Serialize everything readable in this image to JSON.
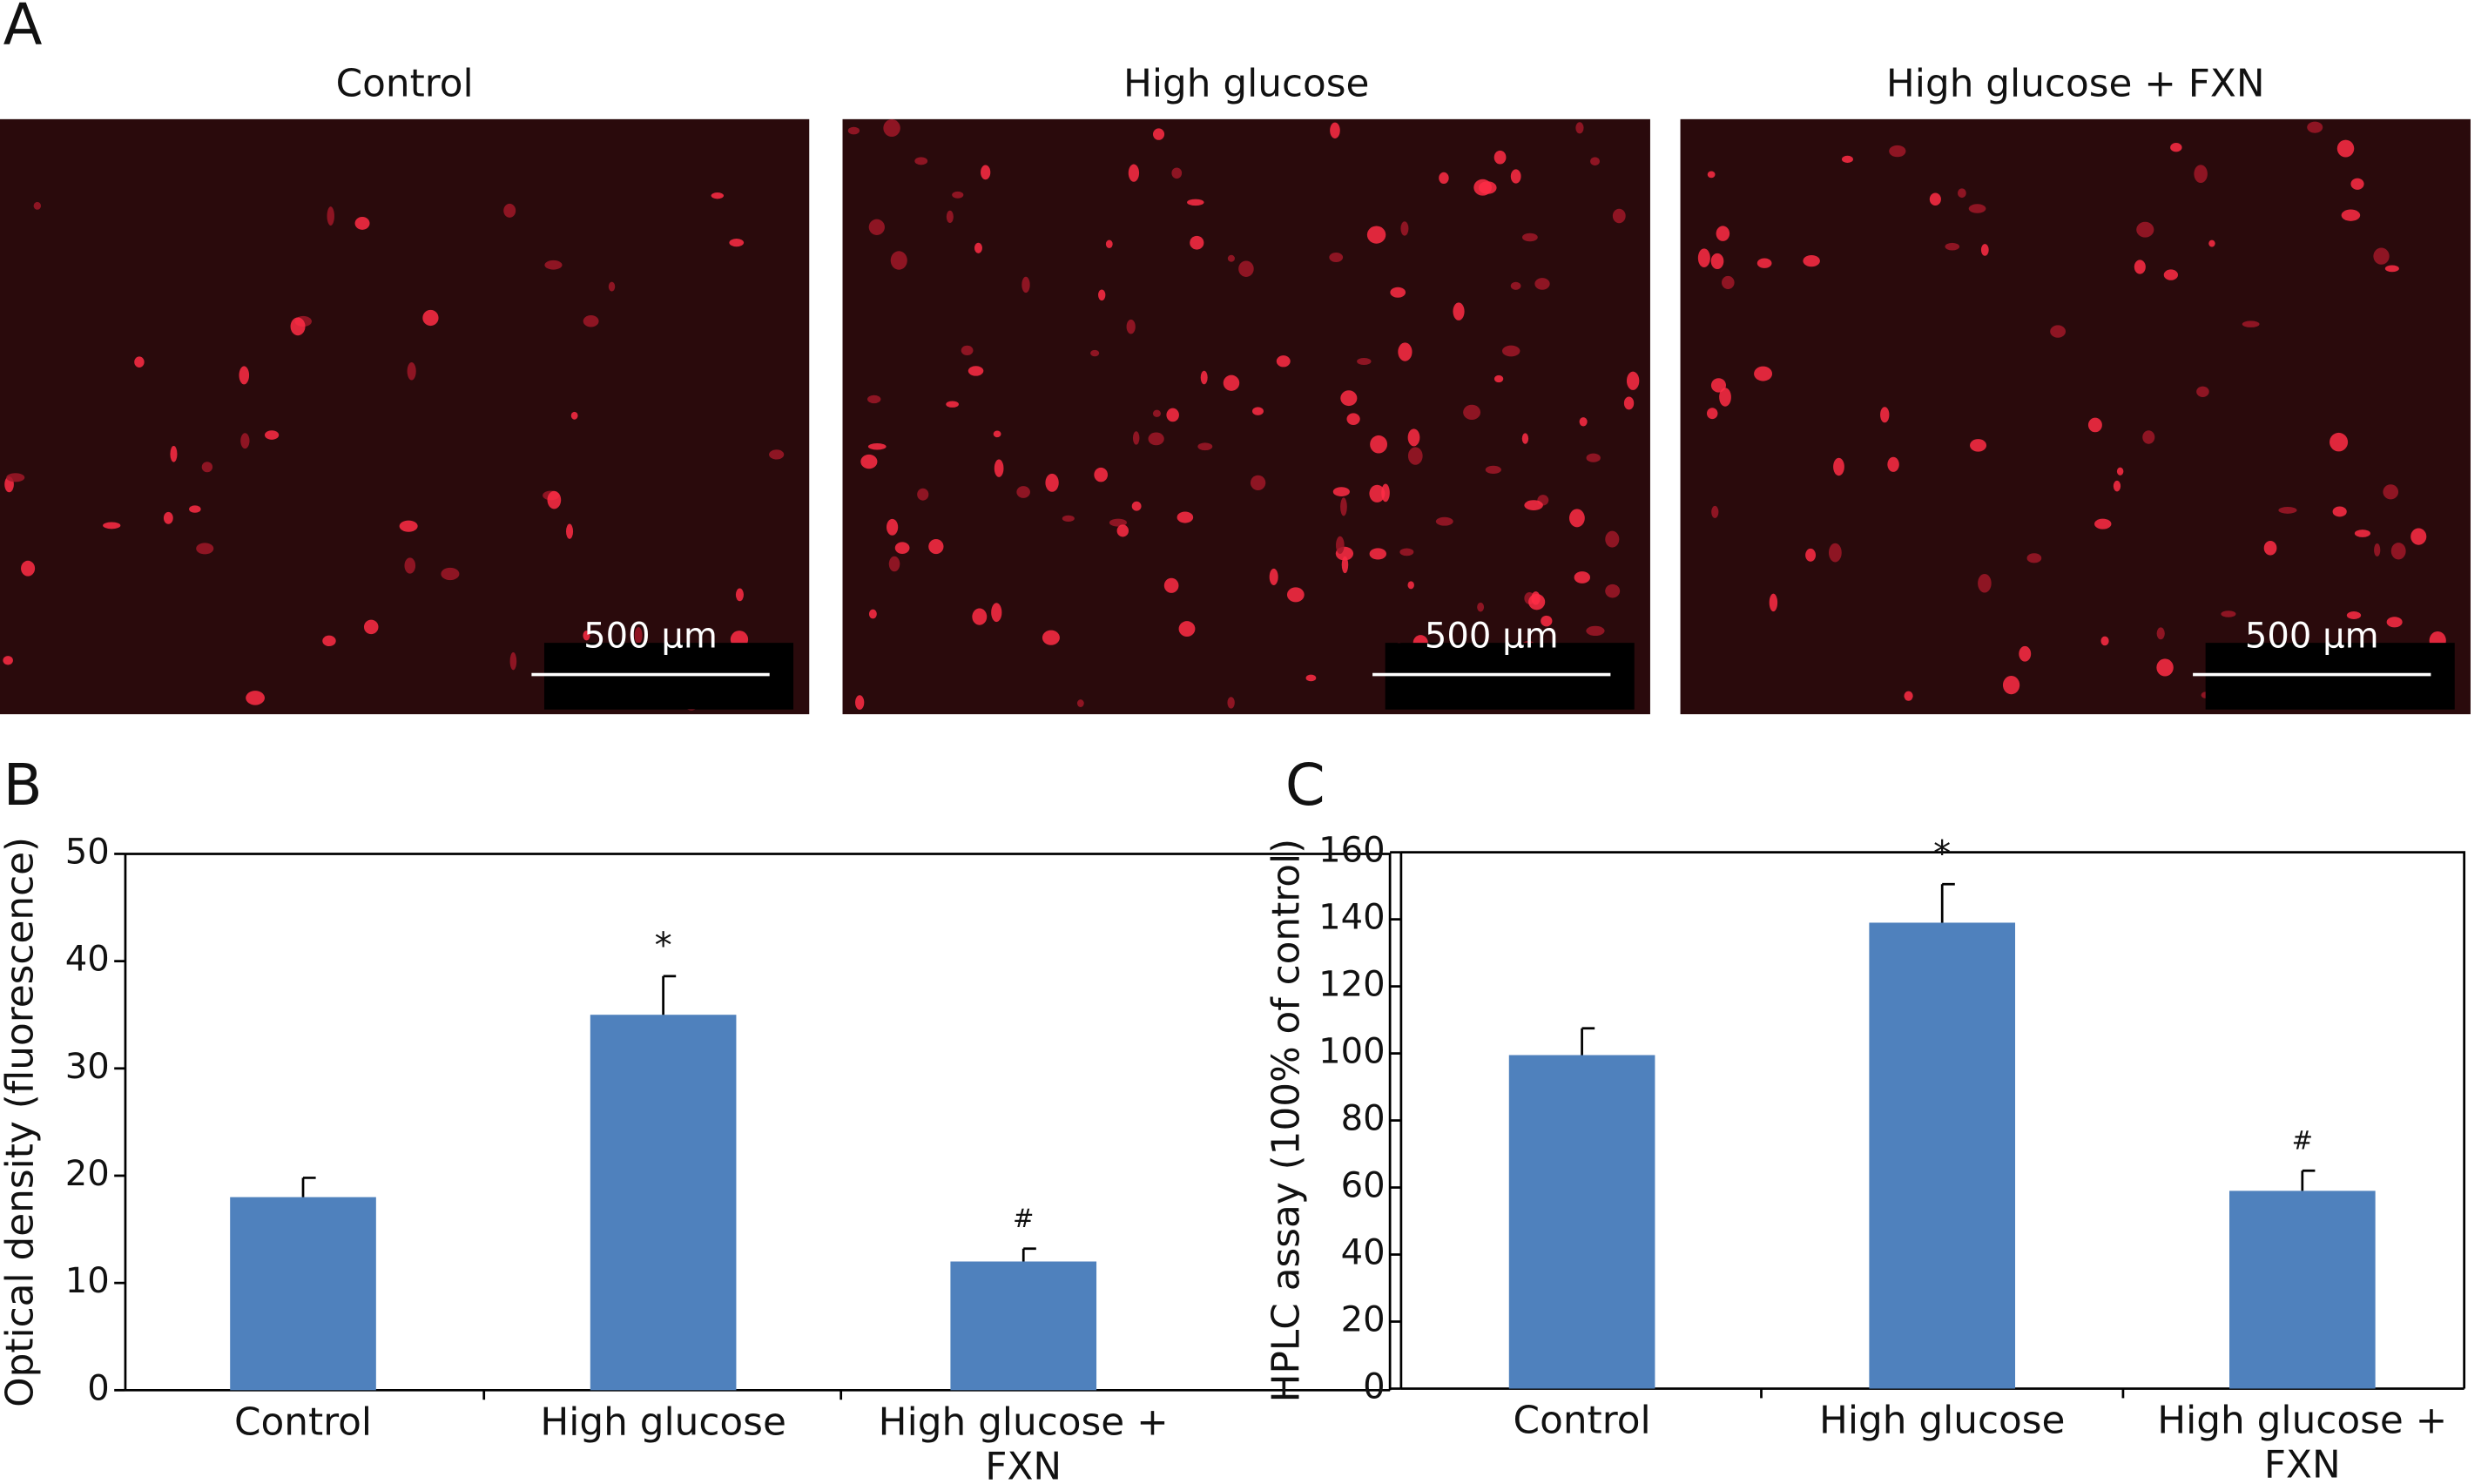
{
  "panel_a": {
    "label": "A",
    "images": [
      {
        "title": "Control",
        "scale_bar": "500 µm"
      },
      {
        "title": "High glucose",
        "scale_bar": "500 µm"
      },
      {
        "title": "High glucose + FXN",
        "scale_bar": "500 µm"
      }
    ]
  },
  "chart_data": [
    {
      "type": "bar",
      "panel": "B",
      "y_label": "Optical density (fluorescence)",
      "categories": [
        "Control",
        "High glucose",
        "High glucose + FXN"
      ],
      "values": [
        18,
        35,
        12
      ],
      "errors": [
        1.8,
        3.6,
        1.2
      ],
      "annotations": [
        null,
        "*",
        "#"
      ],
      "color": "#4f81bd",
      "ylim": [
        0,
        50
      ],
      "yticks": [
        0,
        10,
        20,
        30,
        40,
        50
      ]
    },
    {
      "type": "bar",
      "panel": "C",
      "y_label": "HPLC assay (100% of control)",
      "categories": [
        "Control",
        "High glucose",
        "High glucose + FXN"
      ],
      "values": [
        99.5,
        139,
        59
      ],
      "errors": [
        8,
        11.5,
        6
      ],
      "annotations": [
        null,
        "*",
        "#"
      ],
      "color": "#4f81bd",
      "ylim": [
        0,
        160
      ],
      "yticks": [
        0,
        20,
        40,
        60,
        80,
        100,
        120,
        140,
        160
      ]
    }
  ]
}
